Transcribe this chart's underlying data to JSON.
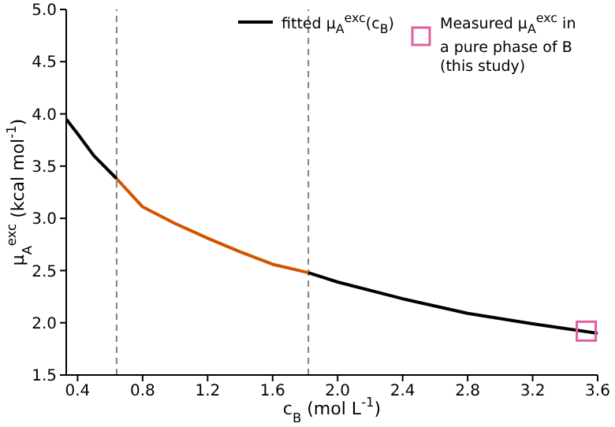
{
  "chart_data": {
    "type": "line",
    "xlabel": "c$_{B}$ (mol L$^{-1}$)",
    "ylabel": "μ$_{A}$$^{exc}$ (kcal mol$^{-1}$)",
    "xlim": [
      0.33,
      3.6
    ],
    "xticks": [
      0.4,
      0.8,
      1.2,
      1.6,
      {
        "value": 2,
        "label": "2.0"
      },
      2.4,
      2.8,
      3.2,
      3.6
    ],
    "ylim": [
      1.5,
      5.0
    ],
    "yticks": [
      1.5,
      {
        "value": 2,
        "label": "2.0"
      },
      2.5,
      {
        "value": 3,
        "label": "3.0"
      },
      3.5,
      {
        "value": 4,
        "label": "4.0"
      },
      4.5,
      {
        "value": 5,
        "label": "5.0"
      }
    ],
    "legend": "top right",
    "line_style": "solid",
    "series": [
      {
        "name": "fitted μ$_{A}$$^{exc}$(c$_{B}$)",
        "color": "#000000",
        "x": [
          0.33,
          0.4,
          0.5,
          0.64
        ],
        "values": [
          3.95,
          3.81,
          3.6,
          3.38
        ]
      },
      {
        "color": "#d35400",
        "x": [
          0.64,
          0.8,
          1.0,
          1.2,
          1.4,
          1.6,
          1.82
        ],
        "values": [
          3.38,
          3.11,
          2.95,
          2.81,
          2.68,
          2.56,
          2.48
        ]
      },
      {
        "color": "#000000",
        "x": [
          1.82,
          2.0,
          2.4,
          2.8,
          3.2,
          3.6
        ],
        "values": [
          2.48,
          2.39,
          2.23,
          2.09,
          1.99,
          1.9
        ]
      },
      {
        "type": "scatter",
        "marker": "square",
        "name": "Measured μ$_{A}$$^{exc}$ in a pure phase of B (this study)",
        "color": "#e0609e",
        "x": [
          3.53
        ],
        "values": [
          1.92
        ]
      }
    ],
    "ref_lines": [
      {
        "axis": "x",
        "value": 0.64,
        "color": "#808080",
        "line_style": "dashed"
      },
      {
        "axis": "x",
        "value": 1.82,
        "color": "#808080",
        "line_style": "dashed"
      }
    ]
  }
}
